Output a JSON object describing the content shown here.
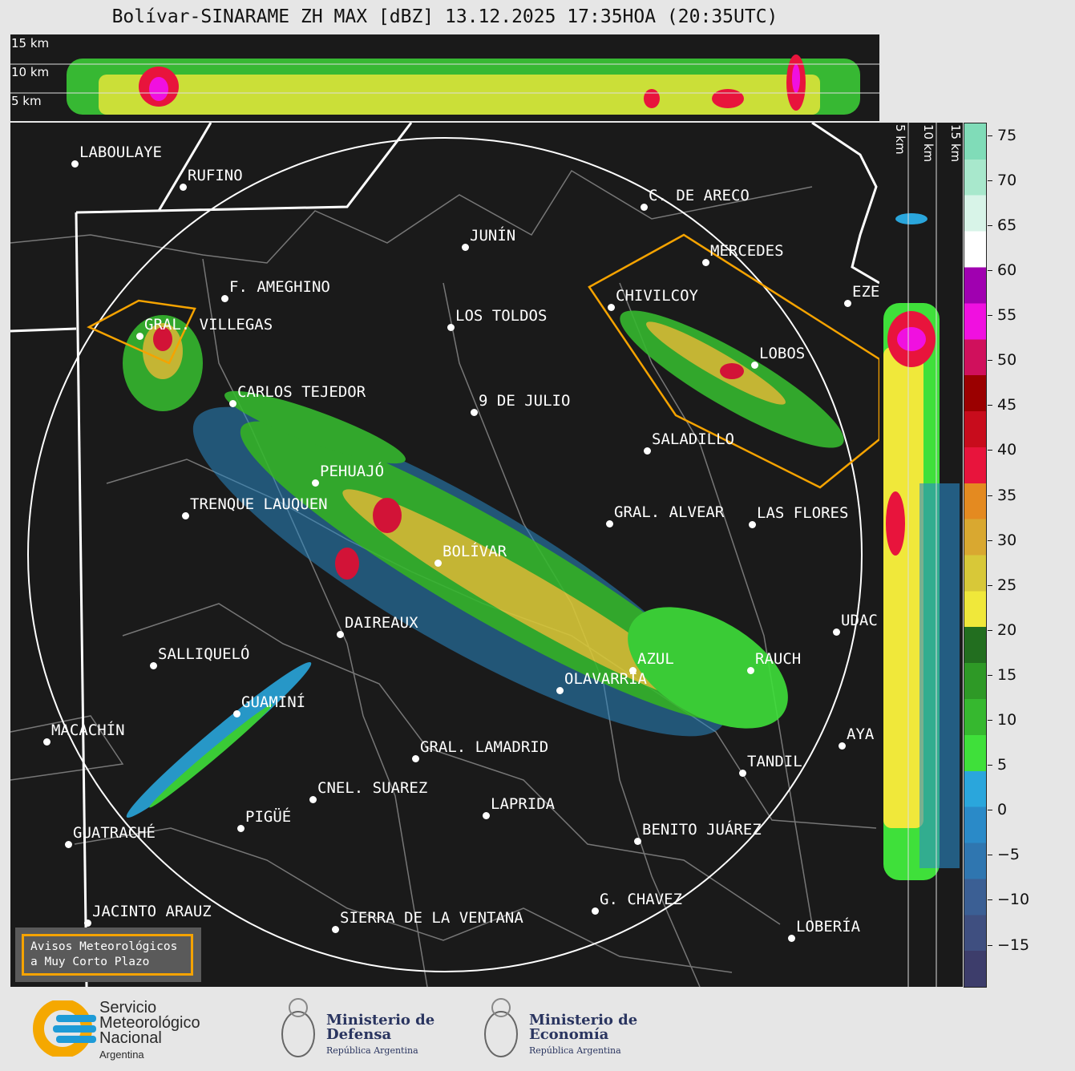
{
  "title": "Bolívar-SINARAME ZH MAX [dBZ] 13.12.2025 17:35HOA (20:35UTC)",
  "cross_section": {
    "top_labels": [
      "15 km",
      "10 km",
      "5 km"
    ],
    "right_labels": [
      "5 km",
      "10 km",
      "15 km"
    ]
  },
  "colorbar": {
    "unit": "dBZ",
    "ticks": [
      "75",
      "70",
      "65",
      "60",
      "55",
      "50",
      "45",
      "40",
      "35",
      "30",
      "25",
      "20",
      "15",
      "10",
      "5",
      "0",
      "−5",
      "−10",
      "−15"
    ],
    "range": [
      -19.5,
      76.5
    ],
    "colors": [
      "#3d3d6b",
      "#3f4f80",
      "#3b5f94",
      "#2f76b0",
      "#2a8ac8",
      "#2aa6dc",
      "#3fe03a",
      "#36b82f",
      "#2e9926",
      "#226e1f",
      "#f0e83a",
      "#d8c838",
      "#d9a830",
      "#e48a20",
      "#e8143c",
      "#c80c1c",
      "#9b0000",
      "#d0105c",
      "#f010e0",
      "#a000b0",
      "#ffffff",
      "#d8f4e8",
      "#a8e8cc",
      "#80dcb8"
    ]
  },
  "towns": [
    {
      "name": "LABOULAYE"
    },
    {
      "name": "RUFINO"
    },
    {
      "name": "C. DE ARECO"
    },
    {
      "name": "JUNÍN"
    },
    {
      "name": "MERCEDES"
    },
    {
      "name": "F. AMEGHINO"
    },
    {
      "name": "CHIVILCOY"
    },
    {
      "name": "EZE"
    },
    {
      "name": "GRAL. VILLEGAS"
    },
    {
      "name": "LOS TOLDOS"
    },
    {
      "name": "LOBOS"
    },
    {
      "name": "CARLOS TEJEDOR"
    },
    {
      "name": "9 DE JULIO"
    },
    {
      "name": "SALADILLO"
    },
    {
      "name": "PEHUAJÓ"
    },
    {
      "name": "TRENQUE LAUQUEN"
    },
    {
      "name": "GRAL. ALVEAR"
    },
    {
      "name": "LAS FLORES"
    },
    {
      "name": "BOLÍVAR"
    },
    {
      "name": "DAIREAUX"
    },
    {
      "name": "UDAC"
    },
    {
      "name": "SALLIQUELÓ"
    },
    {
      "name": "AZUL"
    },
    {
      "name": "RAUCH"
    },
    {
      "name": "OLAVARRÍA"
    },
    {
      "name": "GUAMINÍ"
    },
    {
      "name": "MACACHÍN"
    },
    {
      "name": "AYA"
    },
    {
      "name": "GRAL. LAMADRID"
    },
    {
      "name": "TANDIL"
    },
    {
      "name": "CNEL. SUAREZ"
    },
    {
      "name": "LAPRIDA"
    },
    {
      "name": "PIGÜÉ"
    },
    {
      "name": "GUATRACHÉ"
    },
    {
      "name": "BENITO JUÁREZ"
    },
    {
      "name": "G. CHAVEZ"
    },
    {
      "name": "JACINTO ARAUZ"
    },
    {
      "name": "SIERRA DE LA VENTANA"
    },
    {
      "name": "LOBERÍA"
    }
  ],
  "warning_box": {
    "line1": "Avisos Meteorológicos",
    "line2": "a Muy Corto Plazo",
    "color": "#f5a300"
  },
  "logos": [
    {
      "name": "Servicio Meteorológico Nacional",
      "sub": "Argentina"
    },
    {
      "name": "Ministerio de Defensa",
      "sub": "República Argentina"
    },
    {
      "name": "Ministerio de Economía",
      "sub": "República Argentina"
    }
  ]
}
